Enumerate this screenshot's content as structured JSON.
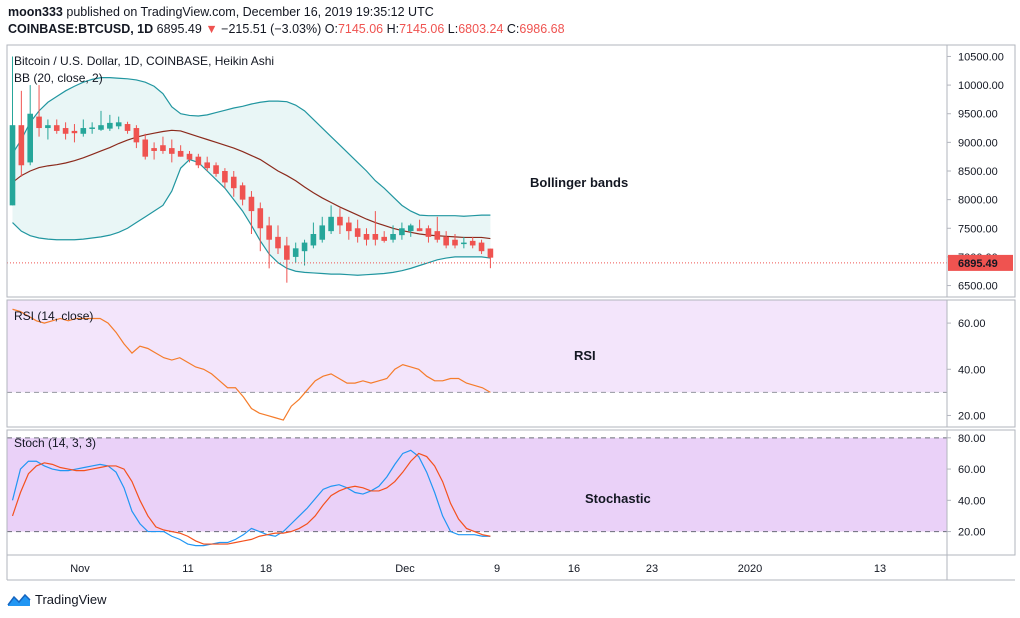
{
  "header": {
    "publisher": "moon333",
    "published_text": "published on TradingView.com, December 16, 2019 19:35:12 UTC",
    "symbol": "COINBASE:BTCUSD, 1D",
    "last": "6895.49",
    "change": "−215.51 (−3.03%)",
    "o_label": "O:",
    "o": "7145.06",
    "h_label": "H:",
    "h": "7145.06",
    "l_label": "L:",
    "l": "6803.24",
    "c_label": "C:",
    "c": "6986.68"
  },
  "colors": {
    "up": "#26a69a",
    "down": "#ef5350",
    "bb_band": "#2196a0",
    "bb_fill": "#e9f6f6",
    "bb_basis": "#8b2a1c",
    "rsi_bg": "#f3e5fb",
    "rsi_line": "#f57c2b",
    "stoch_bg": "#ead1f8",
    "stoch_k": "#2196f3",
    "stoch_d": "#f4511e",
    "price_line": "#ef5350",
    "border": "#b2b5be"
  },
  "panes": {
    "price_title": "Bitcoin / U.S. Dollar, 1D, COINBASE, Heikin Ashi",
    "bb_label": "BB (20, close, 2)",
    "rsi_label": "RSI (14, close)",
    "stoch_label": "Stoch (14, 3, 3)",
    "annotation_bb": "Bollinger bands",
    "annotation_rsi": "RSI",
    "annotation_stoch": "Stochastic",
    "last_price_tag": "6895.49"
  },
  "footer": {
    "brand": "TradingView"
  },
  "chart_data": [
    {
      "type": "candlestick",
      "title": "Bitcoin / U.S. Dollar, 1D, COINBASE, Heikin Ashi",
      "ylim": [
        6300,
        10700
      ],
      "y_ticks": [
        "10500.00",
        "10000.00",
        "9500.00",
        "9000.00",
        "8500.00",
        "8000.00",
        "7500.00",
        "7000.00",
        "6500.00"
      ],
      "x_ticks": [
        "Nov",
        "11",
        "18",
        "Dec",
        "9",
        "16",
        "23",
        "2020",
        "13"
      ],
      "last_price": 6895.49,
      "candles": [
        {
          "o": 7900,
          "h": 10500,
          "l": 7900,
          "c": 9300
        },
        {
          "o": 9300,
          "h": 9900,
          "l": 8400,
          "c": 8600
        },
        {
          "o": 8650,
          "h": 10000,
          "l": 8600,
          "c": 9500
        },
        {
          "o": 9450,
          "h": 10000,
          "l": 9100,
          "c": 9250
        },
        {
          "o": 9250,
          "h": 9400,
          "l": 9050,
          "c": 9300
        },
        {
          "o": 9300,
          "h": 9400,
          "l": 9150,
          "c": 9200
        },
        {
          "o": 9250,
          "h": 9350,
          "l": 9050,
          "c": 9150
        },
        {
          "o": 9200,
          "h": 9320,
          "l": 9000,
          "c": 9160
        },
        {
          "o": 9150,
          "h": 9400,
          "l": 9100,
          "c": 9250
        },
        {
          "o": 9250,
          "h": 9350,
          "l": 9150,
          "c": 9260
        },
        {
          "o": 9220,
          "h": 9550,
          "l": 9200,
          "c": 9300
        },
        {
          "o": 9240,
          "h": 9480,
          "l": 9200,
          "c": 9340
        },
        {
          "o": 9280,
          "h": 9450,
          "l": 9230,
          "c": 9350
        },
        {
          "o": 9320,
          "h": 9360,
          "l": 9150,
          "c": 9200
        },
        {
          "o": 9250,
          "h": 9300,
          "l": 8900,
          "c": 9000
        },
        {
          "o": 9050,
          "h": 9150,
          "l": 8700,
          "c": 8750
        },
        {
          "o": 8900,
          "h": 9000,
          "l": 8700,
          "c": 8850
        },
        {
          "o": 8950,
          "h": 9100,
          "l": 8800,
          "c": 8850
        },
        {
          "o": 8900,
          "h": 9050,
          "l": 8650,
          "c": 8800
        },
        {
          "o": 8850,
          "h": 8950,
          "l": 8750,
          "c": 8750
        },
        {
          "o": 8800,
          "h": 8850,
          "l": 8650,
          "c": 8700
        },
        {
          "o": 8750,
          "h": 8800,
          "l": 8550,
          "c": 8600
        },
        {
          "o": 8650,
          "h": 8750,
          "l": 8500,
          "c": 8550
        },
        {
          "o": 8600,
          "h": 8650,
          "l": 8400,
          "c": 8450
        },
        {
          "o": 8500,
          "h": 8550,
          "l": 8200,
          "c": 8300
        },
        {
          "o": 8400,
          "h": 8500,
          "l": 8050,
          "c": 8200
        },
        {
          "o": 8250,
          "h": 8300,
          "l": 7900,
          "c": 8000
        },
        {
          "o": 8050,
          "h": 8150,
          "l": 7400,
          "c": 7800
        },
        {
          "o": 7850,
          "h": 7950,
          "l": 7100,
          "c": 7500
        },
        {
          "o": 7550,
          "h": 7700,
          "l": 6800,
          "c": 7300
        },
        {
          "o": 7350,
          "h": 7550,
          "l": 7050,
          "c": 7150
        },
        {
          "o": 7200,
          "h": 7350,
          "l": 6550,
          "c": 6950
        },
        {
          "o": 7000,
          "h": 7250,
          "l": 6900,
          "c": 7150
        },
        {
          "o": 7100,
          "h": 7300,
          "l": 6850,
          "c": 7250
        },
        {
          "o": 7200,
          "h": 7600,
          "l": 7150,
          "c": 7400
        },
        {
          "o": 7300,
          "h": 7700,
          "l": 7250,
          "c": 7550
        },
        {
          "o": 7450,
          "h": 7900,
          "l": 7400,
          "c": 7700
        },
        {
          "o": 7700,
          "h": 7850,
          "l": 7400,
          "c": 7550
        },
        {
          "o": 7600,
          "h": 7700,
          "l": 7300,
          "c": 7450
        },
        {
          "o": 7500,
          "h": 7650,
          "l": 7250,
          "c": 7350
        },
        {
          "o": 7400,
          "h": 7500,
          "l": 7200,
          "c": 7300
        },
        {
          "o": 7400,
          "h": 7800,
          "l": 7200,
          "c": 7300
        },
        {
          "o": 7350,
          "h": 7450,
          "l": 7250,
          "c": 7280
        },
        {
          "o": 7300,
          "h": 7550,
          "l": 7250,
          "c": 7400
        },
        {
          "o": 7380,
          "h": 7600,
          "l": 7300,
          "c": 7500
        },
        {
          "o": 7450,
          "h": 7580,
          "l": 7350,
          "c": 7550
        },
        {
          "o": 7500,
          "h": 7650,
          "l": 7450,
          "c": 7450
        },
        {
          "o": 7500,
          "h": 7550,
          "l": 7250,
          "c": 7350
        },
        {
          "o": 7450,
          "h": 7700,
          "l": 7250,
          "c": 7300
        },
        {
          "o": 7350,
          "h": 7450,
          "l": 7150,
          "c": 7200
        },
        {
          "o": 7300,
          "h": 7400,
          "l": 7150,
          "c": 7200
        },
        {
          "o": 7250,
          "h": 7350,
          "l": 7150,
          "c": 7250
        },
        {
          "o": 7280,
          "h": 7350,
          "l": 7150,
          "c": 7200
        },
        {
          "o": 7250,
          "h": 7300,
          "l": 7050,
          "c": 7100
        },
        {
          "o": 7145,
          "h": 7145,
          "l": 6803,
          "c": 6987
        }
      ],
      "bb_upper": [
        8800,
        9050,
        9350,
        9550,
        9700,
        9800,
        9900,
        9980,
        10050,
        10100,
        10130,
        10130,
        10120,
        10110,
        10090,
        10050,
        9980,
        9850,
        9620,
        9500,
        9470,
        9460,
        9480,
        9520,
        9560,
        9600,
        9630,
        9670,
        9700,
        9720,
        9720,
        9710,
        9650,
        9550,
        9400,
        9250,
        9100,
        8950,
        8800,
        8650,
        8500,
        8330,
        8200,
        8050,
        7900,
        7800,
        7730,
        7720,
        7720,
        7720,
        7720,
        7710,
        7720,
        7730,
        7730
      ],
      "bb_basis": [
        8300,
        8420,
        8500,
        8560,
        8590,
        8610,
        8640,
        8680,
        8730,
        8790,
        8850,
        8910,
        8980,
        9040,
        9090,
        9130,
        9160,
        9190,
        9210,
        9200,
        9150,
        9100,
        9050,
        9000,
        8950,
        8900,
        8840,
        8770,
        8700,
        8600,
        8500,
        8420,
        8330,
        8220,
        8120,
        8030,
        7950,
        7870,
        7800,
        7730,
        7660,
        7600,
        7550,
        7500,
        7460,
        7430,
        7400,
        7380,
        7370,
        7360,
        7350,
        7340,
        7340,
        7340,
        7320
      ],
      "bb_lower": [
        7600,
        7450,
        7370,
        7330,
        7310,
        7300,
        7300,
        7300,
        7310,
        7330,
        7350,
        7380,
        7430,
        7500,
        7600,
        7700,
        7800,
        7900,
        8150,
        8550,
        8700,
        8650,
        8500,
        8350,
        8200,
        8000,
        7800,
        7550,
        7280,
        7050,
        6900,
        6800,
        6750,
        6730,
        6720,
        6710,
        6700,
        6700,
        6690,
        6680,
        6690,
        6700,
        6710,
        6730,
        6760,
        6800,
        6850,
        6900,
        6950,
        6980,
        7000,
        7000,
        7000,
        7000,
        6980
      ]
    },
    {
      "type": "line",
      "title": "RSI (14, close)",
      "ylim": [
        15,
        70
      ],
      "y_ticks": [
        "60.00",
        "40.00",
        "20.00"
      ],
      "levels": [
        70,
        30
      ],
      "values": [
        66,
        65,
        63,
        61,
        60,
        61,
        62,
        61,
        62,
        62,
        62,
        62,
        60,
        56,
        51,
        47,
        50,
        49,
        47,
        45,
        44,
        45,
        43,
        41,
        40,
        38,
        35,
        32,
        32,
        28,
        23,
        21,
        20,
        19,
        18,
        24,
        27,
        31,
        35,
        37,
        38,
        36,
        34,
        34,
        35,
        34,
        35,
        36,
        40,
        42,
        41,
        40,
        37,
        35,
        35,
        36,
        36,
        34,
        33,
        32,
        30
      ]
    },
    {
      "type": "line",
      "title": "Stoch (14, 3, 3)",
      "ylim": [
        5,
        85
      ],
      "y_ticks": [
        "80.00",
        "60.00",
        "40.00",
        "20.00"
      ],
      "levels": [
        80,
        20
      ],
      "series": [
        {
          "values": [
            40,
            60,
            65,
            65,
            62,
            60,
            59,
            59,
            60,
            61,
            62,
            63,
            62,
            58,
            48,
            33,
            25,
            20,
            20,
            20,
            17,
            15,
            12,
            11,
            11,
            12,
            13,
            13,
            15,
            18,
            22,
            20,
            18,
            17,
            20,
            25,
            30,
            35,
            41,
            47,
            49,
            50,
            48,
            45,
            44,
            46,
            49,
            55,
            63,
            70,
            72,
            68,
            58,
            45,
            30,
            20,
            18,
            18,
            18,
            17,
            17
          ]
        },
        {
          "values": [
            30,
            45,
            57,
            62,
            64,
            63,
            61,
            60,
            59,
            59,
            60,
            61,
            62,
            62,
            60,
            52,
            40,
            30,
            23,
            21,
            20,
            19,
            17,
            14,
            12,
            12,
            12,
            12,
            13,
            14,
            15,
            17,
            18,
            19,
            19,
            20,
            22,
            25,
            30,
            37,
            43,
            46,
            48,
            49,
            48,
            46,
            46,
            48,
            52,
            58,
            65,
            70,
            68,
            62,
            52,
            38,
            28,
            22,
            20,
            18,
            17
          ]
        }
      ]
    }
  ]
}
